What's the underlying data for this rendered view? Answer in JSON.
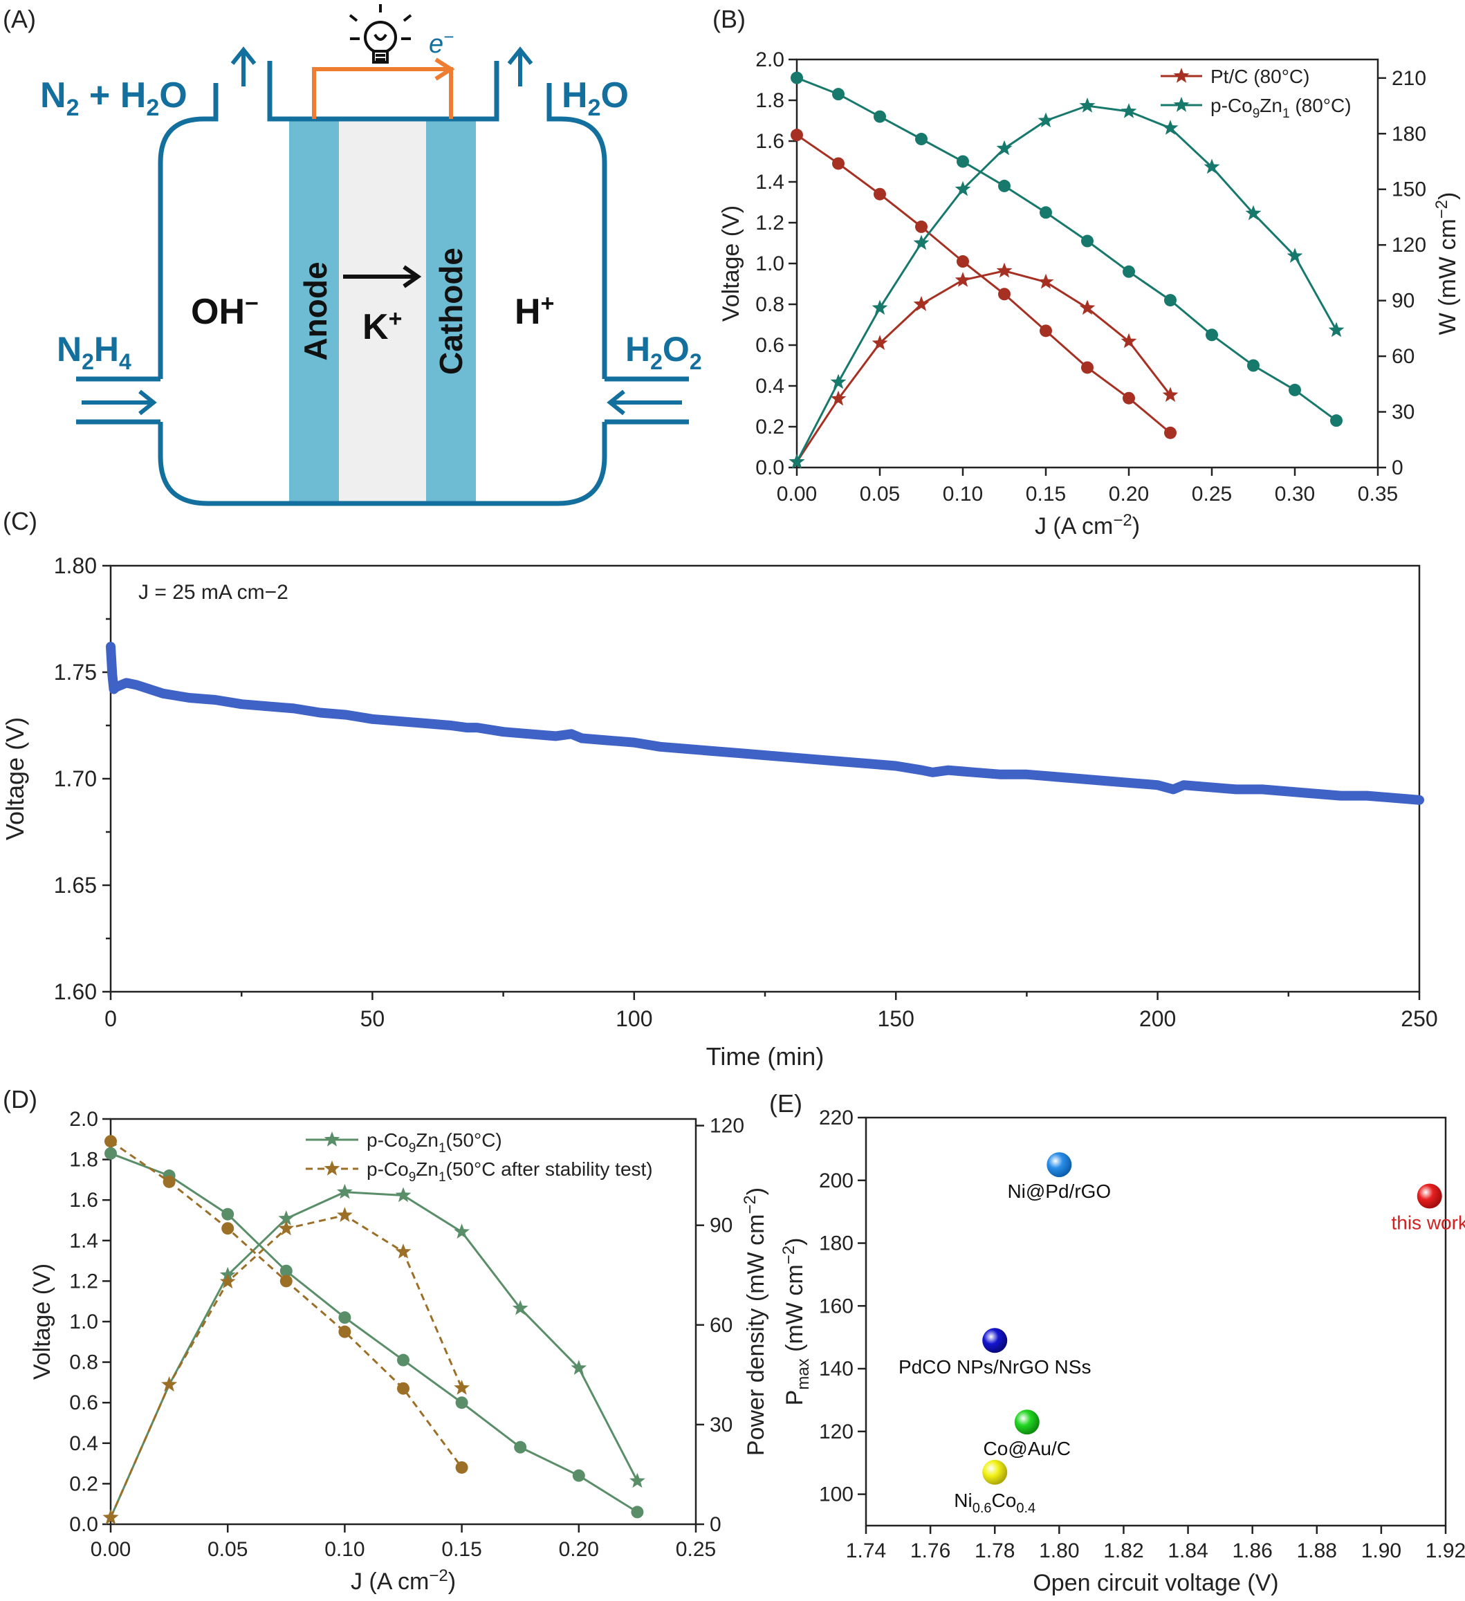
{
  "figure": {
    "panel_labels": [
      "(A)",
      "(B)",
      "(C)",
      "(D)",
      "(E)"
    ]
  },
  "schematic": {
    "top_left_label": "N",
    "top_left_sub": "2",
    "top_left_rest": " + H",
    "top_left_sub2": "2",
    "top_left_end": "O",
    "top_right_label": "H",
    "top_right_sub": "2",
    "top_right_end": "O",
    "left_inlet": "N",
    "left_inlet_sub1": "2",
    "left_inlet_mid": "H",
    "left_inlet_sub2": "4",
    "right_inlet": "H",
    "right_inlet_sub1": "2",
    "right_inlet_mid": "O",
    "right_inlet_sub2": "2",
    "anolyte_ion": "OH",
    "anolyte_sup": "−",
    "catholyte_ion": "H",
    "catholyte_sup": "+",
    "membrane_ion": "K",
    "membrane_sup": "+",
    "anode_label": "Anode",
    "cathode_label": "Cathode",
    "electron_label": "e",
    "electron_sup": "−",
    "colors": {
      "cell": "#136f9e",
      "electrode": "#6dbcd3",
      "membrane": "#efefef",
      "wire": "#ee7d31"
    }
  },
  "chart_data": [
    {
      "panel": "B",
      "type": "line",
      "xlabel": "J (A cm−2)",
      "ylabel": "Voltage (V)",
      "y2label": "W (mW cm−2)",
      "xlim": [
        0,
        0.35
      ],
      "ylim": [
        0,
        2.0
      ],
      "y2lim": [
        0,
        220
      ],
      "xticks": [
        "0.00",
        "0.05",
        "0.10",
        "0.15",
        "0.20",
        "0.25",
        "0.30",
        "0.35"
      ],
      "yticks": [
        "0.0",
        "0.2",
        "0.4",
        "0.6",
        "0.8",
        "1.0",
        "1.2",
        "1.4",
        "1.6",
        "1.8",
        "2.0"
      ],
      "y2ticks": [
        "0",
        "30",
        "60",
        "90",
        "120",
        "150",
        "180",
        "210"
      ],
      "legend_position": "top-right",
      "legend": [
        "Pt/C (80°C)",
        "p-Co9Zn1 (80°C)"
      ],
      "series": [
        {
          "name": "Pt/C (80°C)",
          "kind": "voltage",
          "axis": "left",
          "color": "#a63022",
          "marker": "circle",
          "x": [
            0,
            0.025,
            0.05,
            0.075,
            0.1,
            0.125,
            0.15,
            0.175,
            0.2,
            0.225
          ],
          "y": [
            1.63,
            1.49,
            1.34,
            1.18,
            1.01,
            0.85,
            0.67,
            0.49,
            0.34,
            0.17
          ]
        },
        {
          "name": "Pt/C (80°C)",
          "kind": "power",
          "axis": "right",
          "color": "#a63022",
          "marker": "star",
          "x": [
            0,
            0.025,
            0.05,
            0.075,
            0.1,
            0.125,
            0.15,
            0.175,
            0.2,
            0.225
          ],
          "y": [
            3,
            37,
            67,
            88,
            101,
            106,
            100,
            86,
            68,
            39
          ]
        },
        {
          "name": "p-Co9Zn1 (80°C)",
          "kind": "voltage",
          "axis": "left",
          "color": "#17786c",
          "marker": "circle",
          "x": [
            0,
            0.025,
            0.05,
            0.075,
            0.1,
            0.125,
            0.15,
            0.175,
            0.2,
            0.225,
            0.25,
            0.275,
            0.3,
            0.325
          ],
          "y": [
            1.91,
            1.83,
            1.72,
            1.61,
            1.5,
            1.38,
            1.25,
            1.11,
            0.96,
            0.82,
            0.65,
            0.5,
            0.38,
            0.23
          ]
        },
        {
          "name": "p-Co9Zn1 (80°C)",
          "kind": "power",
          "axis": "right",
          "color": "#17786c",
          "marker": "star",
          "x": [
            0,
            0.025,
            0.05,
            0.075,
            0.1,
            0.125,
            0.15,
            0.175,
            0.2,
            0.225,
            0.25,
            0.275,
            0.3,
            0.325
          ],
          "y": [
            3,
            46,
            86,
            121,
            150,
            172,
            187,
            195,
            192,
            183,
            162,
            137,
            114,
            74
          ]
        }
      ]
    },
    {
      "panel": "C",
      "type": "line",
      "xlabel": "Time (min)",
      "ylabel": "Voltage (V)",
      "xlim": [
        0,
        250
      ],
      "ylim": [
        1.6,
        1.8
      ],
      "xticks": [
        "0",
        "50",
        "100",
        "150",
        "200",
        "250"
      ],
      "yticks": [
        "1.60",
        "1.65",
        "1.70",
        "1.75",
        "1.80"
      ],
      "annotation": "J = 25 mA cm−2",
      "series": [
        {
          "name": "",
          "color": "#3f62c6",
          "x": [
            0,
            0.3,
            0.6,
            1,
            2,
            3,
            5,
            10,
            15,
            20,
            25,
            30,
            35,
            40,
            45,
            50,
            55,
            60,
            65,
            68,
            70,
            75,
            80,
            85,
            88,
            90,
            95,
            100,
            105,
            110,
            115,
            120,
            125,
            130,
            135,
            140,
            145,
            150,
            155,
            157,
            160,
            165,
            170,
            175,
            180,
            185,
            190,
            195,
            200,
            203,
            205,
            210,
            215,
            220,
            225,
            230,
            235,
            240,
            245,
            250
          ],
          "y": [
            1.762,
            1.749,
            1.742,
            1.743,
            1.744,
            1.745,
            1.744,
            1.74,
            1.738,
            1.737,
            1.735,
            1.734,
            1.733,
            1.731,
            1.73,
            1.728,
            1.727,
            1.726,
            1.725,
            1.724,
            1.724,
            1.722,
            1.721,
            1.72,
            1.721,
            1.719,
            1.718,
            1.717,
            1.715,
            1.714,
            1.713,
            1.712,
            1.711,
            1.71,
            1.709,
            1.708,
            1.707,
            1.706,
            1.704,
            1.703,
            1.704,
            1.703,
            1.702,
            1.702,
            1.701,
            1.7,
            1.699,
            1.698,
            1.697,
            1.695,
            1.697,
            1.696,
            1.695,
            1.695,
            1.694,
            1.693,
            1.692,
            1.692,
            1.691,
            1.69
          ]
        }
      ]
    },
    {
      "panel": "D",
      "type": "line",
      "xlabel": "J (A cm−2)",
      "ylabel": "Voltage (V)",
      "y2label": "Power density (mW cm−2)",
      "xlim": [
        0,
        0.25
      ],
      "ylim": [
        0,
        2.0
      ],
      "y2lim": [
        0,
        122
      ],
      "xticks": [
        "0.00",
        "0.05",
        "0.10",
        "0.15",
        "0.20",
        "0.25"
      ],
      "yticks": [
        "0.0",
        "0.2",
        "0.4",
        "0.6",
        "0.8",
        "1.0",
        "1.2",
        "1.4",
        "1.6",
        "1.8",
        "2.0"
      ],
      "y2ticks": [
        "0",
        "30",
        "60",
        "90",
        "120"
      ],
      "legend_position": "top-right",
      "legend": [
        "p-Co9Zn1(50°C)",
        "p-Co9Zn1(50°C after stability test)"
      ],
      "series": [
        {
          "name": "p-Co9Zn1(50°C)",
          "kind": "voltage",
          "axis": "left",
          "color": "#5a8e69",
          "marker": "circle",
          "dashed": false,
          "x": [
            0,
            0.025,
            0.05,
            0.075,
            0.1,
            0.125,
            0.15,
            0.175,
            0.2,
            0.225
          ],
          "y": [
            1.83,
            1.72,
            1.53,
            1.25,
            1.02,
            0.81,
            0.6,
            0.38,
            0.24,
            0.06
          ]
        },
        {
          "name": "p-Co9Zn1(50°C)",
          "kind": "power",
          "axis": "right",
          "color": "#5a8e69",
          "marker": "star",
          "dashed": false,
          "x": [
            0,
            0.025,
            0.05,
            0.075,
            0.1,
            0.125,
            0.15,
            0.175,
            0.2,
            0.225
          ],
          "y": [
            2,
            42,
            75,
            92,
            100,
            99,
            88,
            65,
            47,
            13
          ]
        },
        {
          "name": "p-Co9Zn1(50°C after stability test)",
          "kind": "voltage",
          "axis": "left",
          "color": "#9c6f27",
          "marker": "circle",
          "dashed": true,
          "x": [
            0,
            0.025,
            0.05,
            0.075,
            0.1,
            0.125,
            0.15
          ],
          "y": [
            1.89,
            1.69,
            1.46,
            1.2,
            0.95,
            0.67,
            0.28
          ]
        },
        {
          "name": "p-Co9Zn1(50°C after stability test)",
          "kind": "power",
          "axis": "right",
          "color": "#9c6f27",
          "marker": "star",
          "dashed": true,
          "x": [
            0,
            0.025,
            0.05,
            0.075,
            0.1,
            0.125,
            0.15
          ],
          "y": [
            2,
            42,
            73,
            89,
            93,
            82,
            41
          ]
        }
      ]
    },
    {
      "panel": "E",
      "type": "scatter",
      "xlabel": "Open circuit voltage (V)",
      "ylabel": "P (mW cm−2)",
      "ylabel_main": "P",
      "ylabel_sub": "max",
      "ylabel_rest": " (mW cm−2)",
      "xlim": [
        1.74,
        1.92
      ],
      "ylim": [
        90,
        220
      ],
      "xticks": [
        "1.74",
        "1.76",
        "1.78",
        "1.80",
        "1.82",
        "1.84",
        "1.86",
        "1.88",
        "1.90",
        "1.92"
      ],
      "yticks": [
        "100",
        "120",
        "140",
        "160",
        "180",
        "200",
        "220"
      ],
      "points": [
        {
          "label": "Ni@Pd/rGO",
          "x": 1.8,
          "y": 205,
          "color": "#2a8ee8",
          "label_color": "#111111"
        },
        {
          "label": "this work",
          "x": 1.915,
          "y": 195,
          "color": "#e82020",
          "label_color": "#d52020"
        },
        {
          "label": "PdCO NPs/NrGO NSs",
          "x": 1.78,
          "y": 149,
          "color": "#1515d0",
          "label_color": "#111111"
        },
        {
          "label": "Co@Au/C",
          "x": 1.79,
          "y": 123,
          "color": "#22d622",
          "label_color": "#111111"
        },
        {
          "label": "Ni0.6Co0.4",
          "label_main": "Ni",
          "label_sub1": "0.6",
          "label_mid": "Co",
          "label_sub2": "0.4",
          "x": 1.78,
          "y": 107,
          "color": "#f2f218",
          "label_color": "#111111"
        }
      ]
    }
  ]
}
